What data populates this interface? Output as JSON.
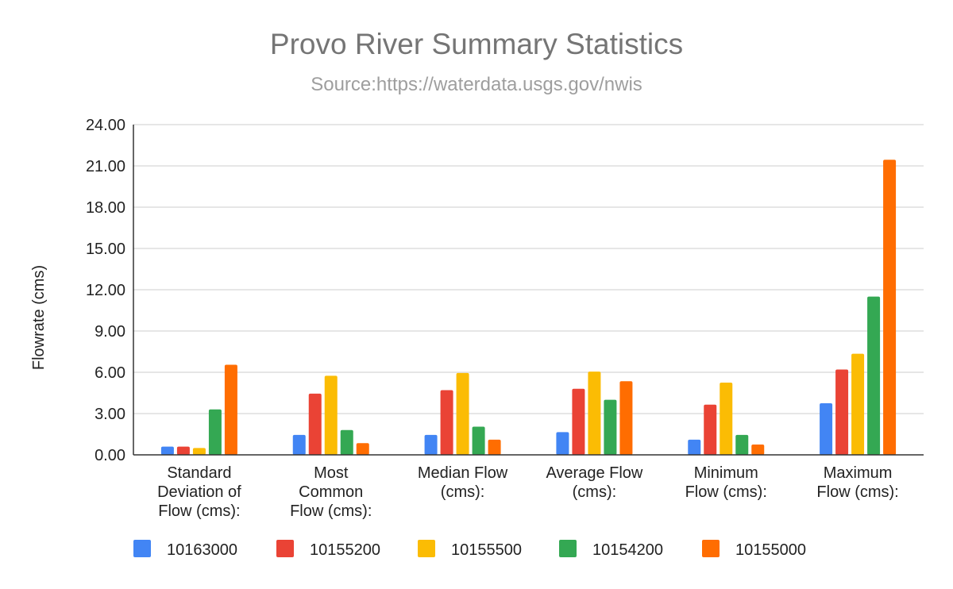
{
  "chart_data": {
    "type": "bar",
    "title": "Provo River Summary Statistics",
    "subtitle": "Source:https://waterdata.usgs.gov/nwis",
    "xlabel": "",
    "ylabel": "Flowrate (cms)",
    "ylim": [
      0,
      24
    ],
    "yticks": [
      "0.00",
      "3.00",
      "6.00",
      "9.00",
      "12.00",
      "15.00",
      "18.00",
      "21.00",
      "24.00"
    ],
    "grid": true,
    "legend_position": "bottom",
    "categories": [
      [
        "Standard",
        "Deviation of",
        "Flow (cms):"
      ],
      [
        "Most",
        "Common",
        "Flow (cms):"
      ],
      [
        "Median Flow",
        "(cms):"
      ],
      [
        "Average Flow",
        "(cms):"
      ],
      [
        "Minimum",
        "Flow (cms):"
      ],
      [
        "Maximum",
        "Flow (cms):"
      ]
    ],
    "series": [
      {
        "name": "10163000",
        "color": "#4285f4",
        "values": [
          0.6,
          1.45,
          1.45,
          1.65,
          1.1,
          3.75
        ]
      },
      {
        "name": "10155200",
        "color": "#ea4335",
        "values": [
          0.6,
          4.45,
          4.7,
          4.8,
          3.65,
          6.2
        ]
      },
      {
        "name": "10155500",
        "color": "#fbbc04",
        "values": [
          0.5,
          5.75,
          5.95,
          6.05,
          5.25,
          7.35
        ]
      },
      {
        "name": "10154200",
        "color": "#34a853",
        "values": [
          3.3,
          1.8,
          2.05,
          4.0,
          1.45,
          11.5
        ]
      },
      {
        "name": "10155000",
        "color": "#ff6d01",
        "values": [
          6.55,
          0.85,
          1.1,
          5.35,
          0.75,
          21.45
        ]
      }
    ]
  }
}
